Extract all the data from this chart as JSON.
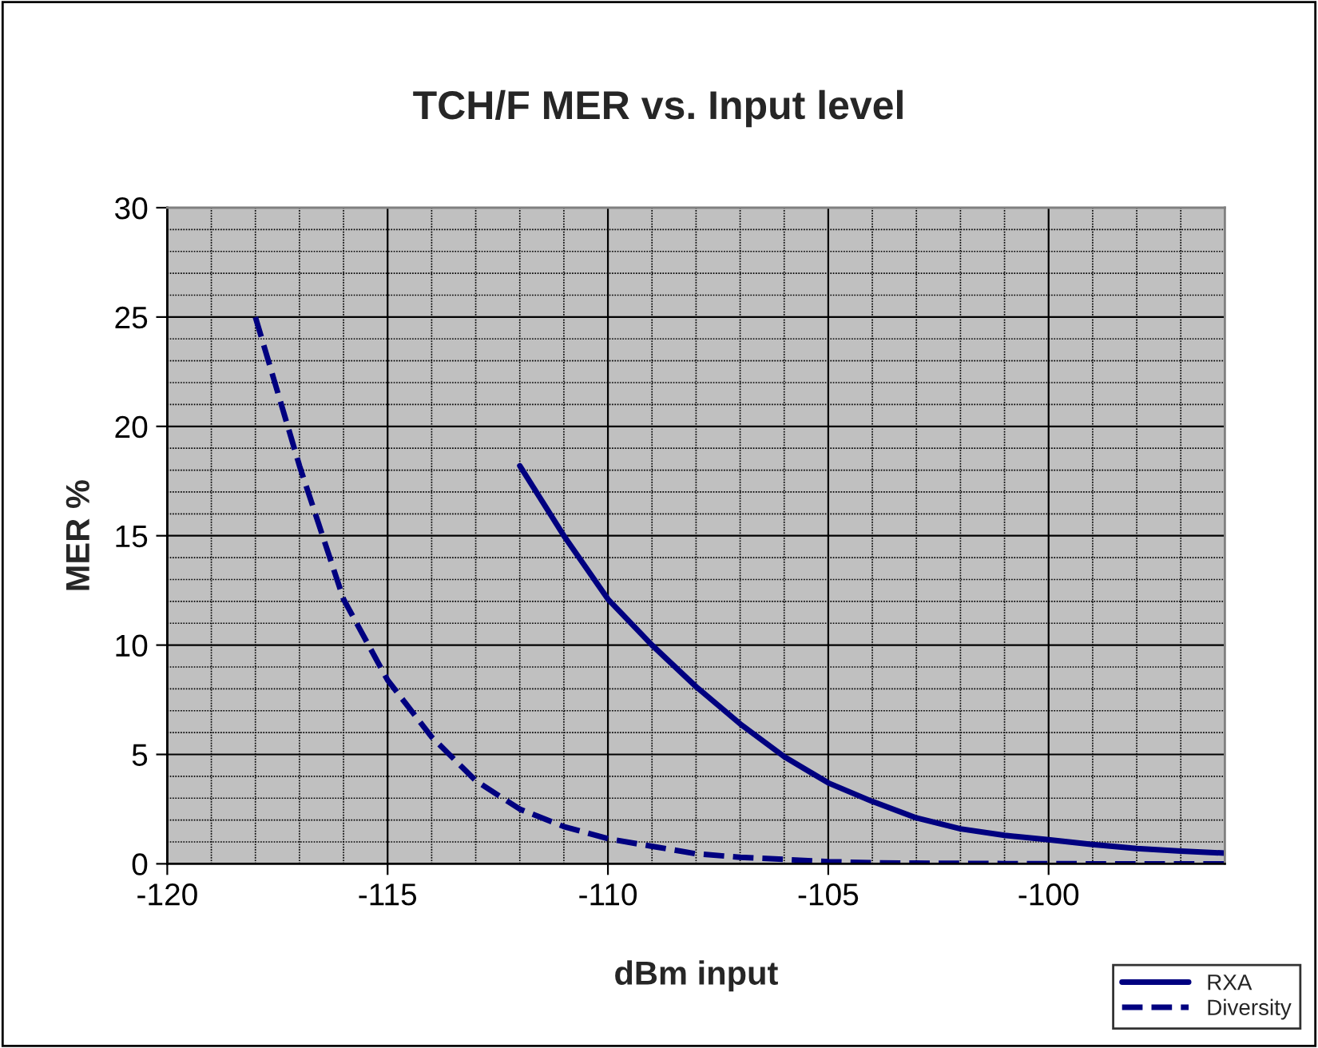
{
  "chart_data": {
    "type": "line",
    "title": "TCH/F MER vs. Input level",
    "xlabel": "dBm input",
    "ylabel": "MER %",
    "xlim": [
      -120,
      -96
    ],
    "xticks": [
      -120,
      -115,
      -110,
      -105,
      -100
    ],
    "ylim": [
      0,
      30
    ],
    "yticks": [
      0,
      5,
      10,
      15,
      20,
      25,
      30
    ],
    "grid": true,
    "legend": "bottom right",
    "series": [
      {
        "name": "RXA",
        "color": "#000080",
        "line_style": "solid",
        "x": [
          -112,
          -111,
          -110,
          -109,
          -108,
          -107,
          -106,
          -105,
          -104,
          -103,
          -102,
          -101,
          -100,
          -99,
          -98,
          -97,
          -96
        ],
        "values": [
          18.2,
          15.0,
          12.1,
          10.0,
          8.1,
          6.4,
          4.9,
          3.7,
          2.85,
          2.1,
          1.6,
          1.3,
          1.1,
          0.88,
          0.7,
          0.58,
          0.49
        ]
      },
      {
        "name": "Diversity",
        "color": "#000080",
        "line_style": "dashed",
        "x": [
          -118,
          -117,
          -116,
          -115,
          -114,
          -113,
          -112,
          -111,
          -110,
          -109,
          -108,
          -107,
          -106,
          -105,
          -104,
          -103,
          -102,
          -101,
          -100,
          -99,
          -98,
          -97,
          -96
        ],
        "values": [
          25.0,
          18.2,
          12.1,
          8.4,
          5.8,
          3.8,
          2.5,
          1.7,
          1.15,
          0.8,
          0.46,
          0.3,
          0.2,
          0.1,
          0.05,
          0.03,
          0.02,
          0.01,
          0.01,
          0,
          0,
          0,
          0
        ]
      }
    ]
  }
}
